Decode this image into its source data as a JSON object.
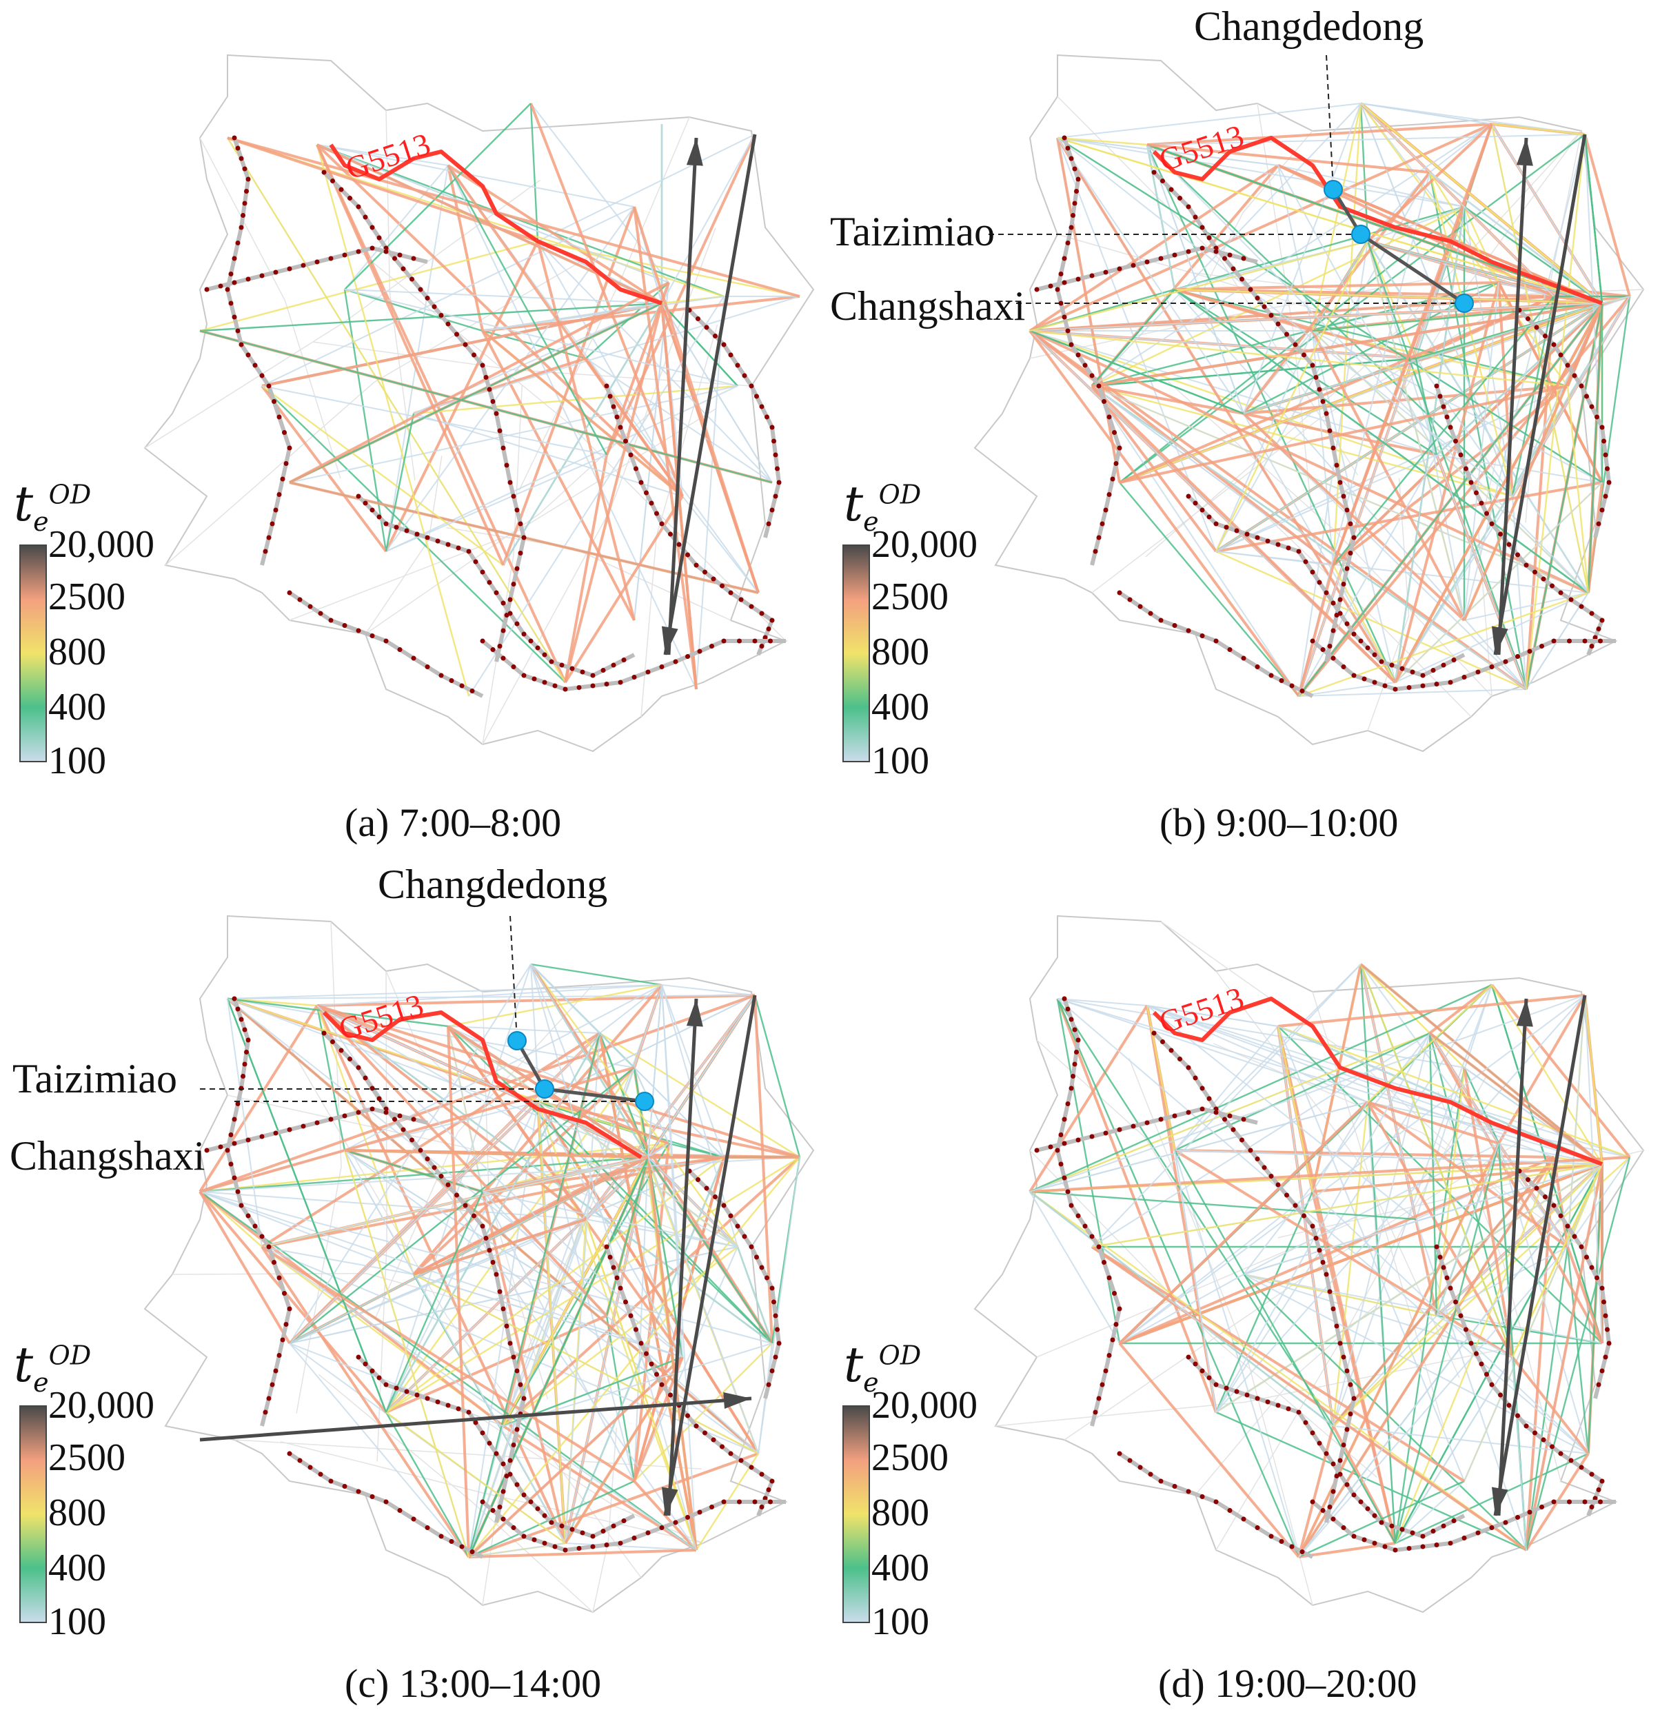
{
  "colors": {
    "very_low": "#c9dcea",
    "low": "#4cc08a",
    "mid": "#f0e36a",
    "high": "#f3a07f",
    "very_high": "#4a4a4a",
    "route": "#ff3b2f",
    "station": "#1ab3f0",
    "boundary": "#c8c8c8",
    "track": "#bdbdbd",
    "track_dot": "#8b0000"
  },
  "legend": {
    "title_base": "t",
    "title_sub": "e",
    "title_sup": "OD",
    "ticks": [
      "20,000",
      "2500",
      "800",
      "400",
      "100"
    ]
  },
  "route_name": "G5513",
  "station_names": {
    "changdedong": "Changdedong",
    "taizimiao": "Taizimiao",
    "changshaxi": "Changshaxi"
  },
  "panels": [
    {
      "id": "a",
      "caption": "(a) 7:00–8:00",
      "density": 1,
      "highlight_stations": false
    },
    {
      "id": "b",
      "caption": "(b) 9:00–10:00",
      "density": 3,
      "highlight_stations": true
    },
    {
      "id": "c",
      "caption": "(c) 13:00–14:00",
      "density": 3,
      "highlight_stations": true
    },
    {
      "id": "d",
      "caption": "(d) 19:00–20:00",
      "density": 2,
      "highlight_stations": false
    }
  ]
}
